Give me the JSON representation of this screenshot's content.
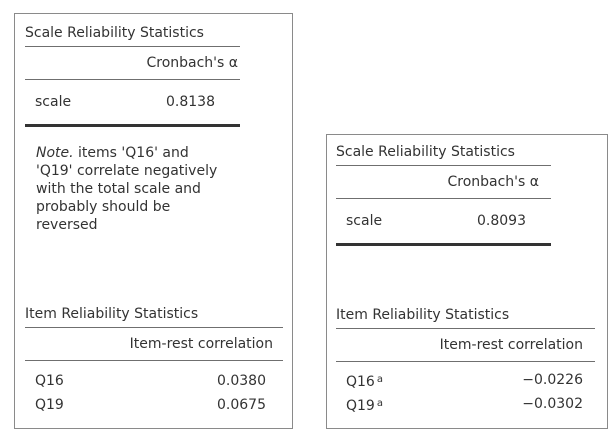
{
  "left_panel": {
    "scale_table": {
      "title": "Scale Reliability Statistics",
      "column_header": "Cronbach's α",
      "row_label": "scale",
      "row_value": "0.8138"
    },
    "note": {
      "label": "Note.",
      "lines": [
        "items 'Q16' and",
        "'Q19' correlate negatively",
        "with the total scale and",
        "probably should be",
        "reversed"
      ]
    },
    "item_table": {
      "title": "Item Reliability Statistics",
      "column_header": "Item-rest correlation",
      "rows": [
        {
          "label": "Q16",
          "value": "0.0380"
        },
        {
          "label": "Q19",
          "value": "0.0675"
        }
      ]
    }
  },
  "right_panel": {
    "scale_table": {
      "title": "Scale Reliability Statistics",
      "column_header": "Cronbach's α",
      "row_label": "scale",
      "row_value": "0.8093"
    },
    "item_table": {
      "title": "Item Reliability Statistics",
      "column_header": "Item-rest correlation",
      "rows": [
        {
          "label": "Q16",
          "marker": "a",
          "value": "−0.0226"
        },
        {
          "label": "Q19",
          "marker": "a",
          "value": "−0.0302"
        }
      ]
    }
  }
}
